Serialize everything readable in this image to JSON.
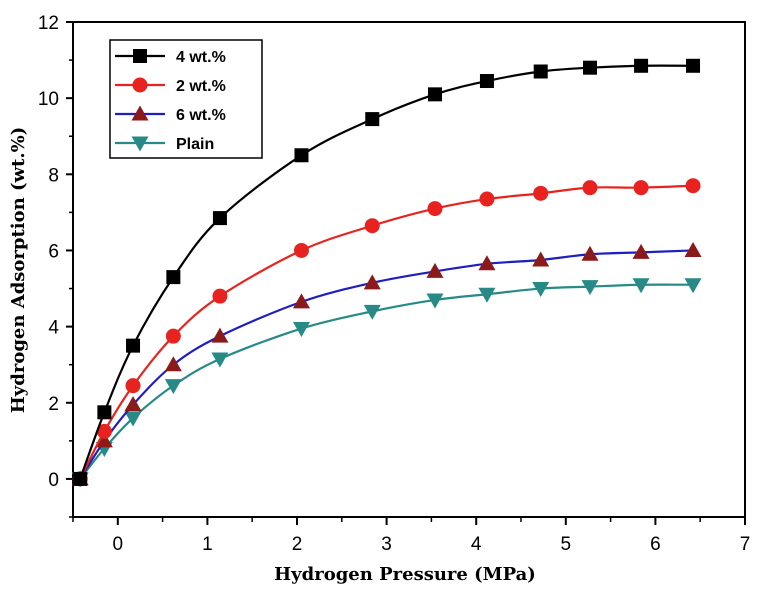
{
  "chart_data": {
    "type": "line",
    "title": "",
    "xlabel": "Hydrogen Pressure (MPa)",
    "ylabel": "Hydrogen Adsorption (wt.%)",
    "xlim": [
      -0.5,
      7
    ],
    "ylim": [
      -1,
      12
    ],
    "xticks": [
      0,
      1,
      2,
      3,
      4,
      5,
      6,
      7
    ],
    "yticks": [
      0,
      2,
      4,
      6,
      8,
      10,
      12
    ],
    "grid": false,
    "legend_position": "top-left",
    "x": [
      -0.42,
      -0.15,
      0.17,
      0.62,
      1.14,
      2.05,
      2.84,
      3.54,
      4.12,
      4.72,
      5.27,
      5.84,
      6.42
    ],
    "series": [
      {
        "name": "4 wt.%",
        "color": "#000000",
        "marker": "square",
        "values": [
          0,
          1.75,
          3.5,
          5.3,
          6.85,
          8.5,
          9.45,
          10.1,
          10.45,
          10.7,
          10.8,
          10.85,
          10.85
        ]
      },
      {
        "name": "2 wt.%",
        "color": "#e8231f",
        "marker": "circle",
        "values": [
          0,
          1.25,
          2.45,
          3.75,
          4.8,
          6.0,
          6.65,
          7.1,
          7.35,
          7.5,
          7.65,
          7.65,
          7.7
        ]
      },
      {
        "name": "6 wt.%",
        "color": "#1f1fbf",
        "marker": "triangle-up",
        "values": [
          0,
          1.0,
          1.95,
          3.0,
          3.75,
          4.65,
          5.15,
          5.45,
          5.65,
          5.75,
          5.9,
          5.95,
          6.0
        ]
      },
      {
        "name": "Plain",
        "color": "#278a87",
        "marker": "triangle-down",
        "values": [
          0,
          0.8,
          1.6,
          2.45,
          3.15,
          3.95,
          4.4,
          4.7,
          4.85,
          5.0,
          5.05,
          5.1,
          5.1
        ]
      }
    ]
  }
}
